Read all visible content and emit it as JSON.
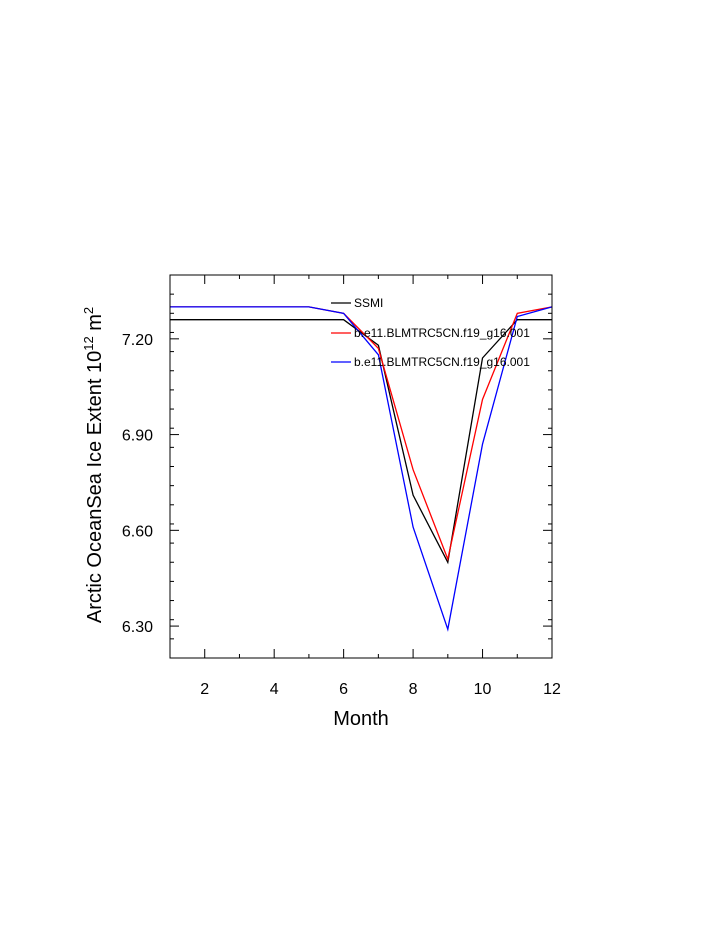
{
  "chart_data": {
    "type": "line",
    "title": "",
    "xlabel": "Month",
    "ylabel_main": "Arctic OceanSea Ice Extent 10",
    "ylabel_sup1": "12",
    "ylabel_unit": " m",
    "ylabel_sup2": "2",
    "xlim": [
      1,
      12
    ],
    "ylim": [
      6.2,
      7.4
    ],
    "xticks": [
      2,
      4,
      6,
      8,
      10,
      12
    ],
    "xtick_labels": [
      "2",
      "4",
      "6",
      "8",
      "10",
      "12"
    ],
    "yticks": [
      6.3,
      6.6,
      6.9,
      7.2
    ],
    "ytick_labels": [
      "6.30",
      "6.60",
      "6.90",
      "7.20"
    ],
    "grid": false,
    "legend_position": "top-right",
    "x": [
      1,
      2,
      3,
      4,
      5,
      6,
      7,
      8,
      9,
      10,
      11,
      12
    ],
    "series": [
      {
        "name": "SSMI",
        "color": "#000000",
        "values": [
          7.26,
          7.26,
          7.26,
          7.26,
          7.26,
          7.26,
          7.18,
          6.71,
          6.5,
          7.14,
          7.26,
          7.26
        ]
      },
      {
        "name": "b.e11.BLMTRC5CN.f19_g16.001",
        "color": "#ff0000",
        "values": [
          7.3,
          7.3,
          7.3,
          7.3,
          7.3,
          7.28,
          7.17,
          6.79,
          6.51,
          7.01,
          7.28,
          7.3
        ]
      },
      {
        "name": "b.e11.BLMTRC5CN.f19_g16.001",
        "color": "#0000ff",
        "values": [
          7.3,
          7.3,
          7.3,
          7.3,
          7.3,
          7.28,
          7.15,
          6.61,
          6.29,
          6.87,
          7.27,
          7.3
        ]
      }
    ]
  }
}
